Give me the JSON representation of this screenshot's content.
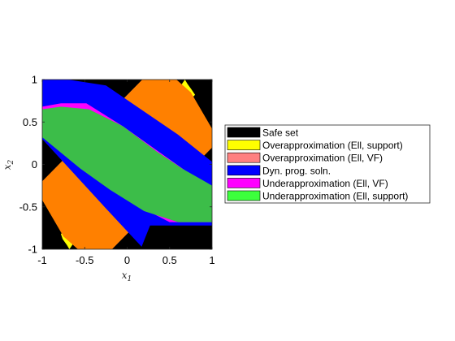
{
  "chart_data": {
    "type": "area",
    "title": "",
    "xlabel": {
      "base": "x",
      "sub": "1"
    },
    "ylabel": {
      "base": "x",
      "sub": "2"
    },
    "xlim": [
      -1,
      1
    ],
    "ylim": [
      -1,
      1
    ],
    "xticks": [
      -1,
      -0.5,
      0,
      0.5,
      1
    ],
    "yticks": [
      -1,
      -0.5,
      0,
      0.5,
      1
    ],
    "xtick_labels": [
      "-1",
      "-0.5",
      "0",
      "0.5",
      "1"
    ],
    "ytick_labels": [
      "-1",
      "-0.5",
      "0",
      "0.5",
      "1"
    ],
    "grid": false,
    "legend_position": "outside-right",
    "series": [
      {
        "name": "Safe set",
        "color": "#000000",
        "polygon": [
          [
            -1,
            -1
          ],
          [
            1,
            -1
          ],
          [
            1,
            1
          ],
          [
            -1,
            1
          ]
        ]
      },
      {
        "name": "Overapproximation (Ell, support)",
        "color": "#ffff00",
        "polygon": [
          [
            -0.78,
            -0.82
          ],
          [
            -0.76,
            -0.88
          ],
          [
            -0.71,
            -0.95
          ],
          [
            -0.68,
            -1.0
          ],
          [
            0.68,
            1.0
          ],
          [
            0.71,
            0.95
          ],
          [
            0.76,
            0.88
          ],
          [
            0.8,
            0.82
          ]
        ]
      },
      {
        "name": "Overapproximation (Ell, VF)",
        "color": "#ff8080",
        "polygon": [
          [
            -1,
            -0.2
          ],
          [
            -0.18,
            -1
          ],
          [
            1,
            0.2
          ],
          [
            0.18,
            1
          ]
        ]
      },
      {
        "name": "Dyn. prog. soln.",
        "color": "#ff8000",
        "polygon": [
          [
            -1,
            -0.2
          ],
          [
            -1,
            -0.42
          ],
          [
            -0.75,
            -0.85
          ],
          [
            -0.58,
            -1.0
          ],
          [
            -0.18,
            -1.0
          ],
          [
            1,
            0.2
          ],
          [
            1,
            0.42
          ],
          [
            0.75,
            0.85
          ],
          [
            0.58,
            1.0
          ],
          [
            0.18,
            1.0
          ]
        ]
      },
      {
        "name": "Underapproximation (Ell, VF)",
        "color": "#0000ff",
        "polygon": [
          [
            -1,
            1
          ],
          [
            -0.7,
            1
          ],
          [
            -0.25,
            0.93
          ],
          [
            0.6,
            0.35
          ],
          [
            1,
            0.03
          ],
          [
            1,
            -0.72
          ],
          [
            0.27,
            -0.72
          ],
          [
            0.17,
            -0.97
          ],
          [
            -0.25,
            -0.52
          ],
          [
            -1,
            0.3
          ]
        ]
      },
      {
        "name": "Underapproximation (Ell, support)",
        "color": "#ff00ff",
        "polygon": [
          [
            -1,
            0.68
          ],
          [
            -1,
            0.38
          ],
          [
            -0.2,
            -0.28
          ],
          [
            0.15,
            -0.5
          ],
          [
            0.5,
            -0.68
          ],
          [
            1,
            -0.68
          ],
          [
            1,
            -0.32
          ],
          [
            0.68,
            -0.07
          ],
          [
            -0.05,
            0.45
          ],
          [
            -0.48,
            0.72
          ],
          [
            -0.78,
            0.72
          ]
        ]
      },
      {
        "name": "",
        "color": "#3cbd49",
        "polygon": [
          [
            -1,
            0.65
          ],
          [
            -0.78,
            0.68
          ],
          [
            -0.45,
            0.65
          ],
          [
            -0.05,
            0.45
          ],
          [
            0.35,
            0.15
          ],
          [
            0.65,
            -0.05
          ],
          [
            1,
            -0.25
          ],
          [
            1,
            -0.68
          ],
          [
            0.6,
            -0.68
          ],
          [
            0.2,
            -0.55
          ],
          [
            -0.2,
            -0.3
          ],
          [
            -0.55,
            -0.05
          ],
          [
            -1,
            0.32
          ]
        ]
      }
    ],
    "legend": [
      {
        "label": "Safe set",
        "color": "#000000"
      },
      {
        "label": "Overapproximation (Ell, support)",
        "color": "#ffff00"
      },
      {
        "label": "Overapproximation (Ell, VF)",
        "color": "#ff8080"
      },
      {
        "label": "Dyn. prog. soln.",
        "color": "#0000ff"
      },
      {
        "label": "Underapproximation (Ell, VF)",
        "color": "#ff00ff"
      },
      {
        "label": "Underapproximation (Ell, support)",
        "color": "#3cff3c"
      }
    ]
  }
}
